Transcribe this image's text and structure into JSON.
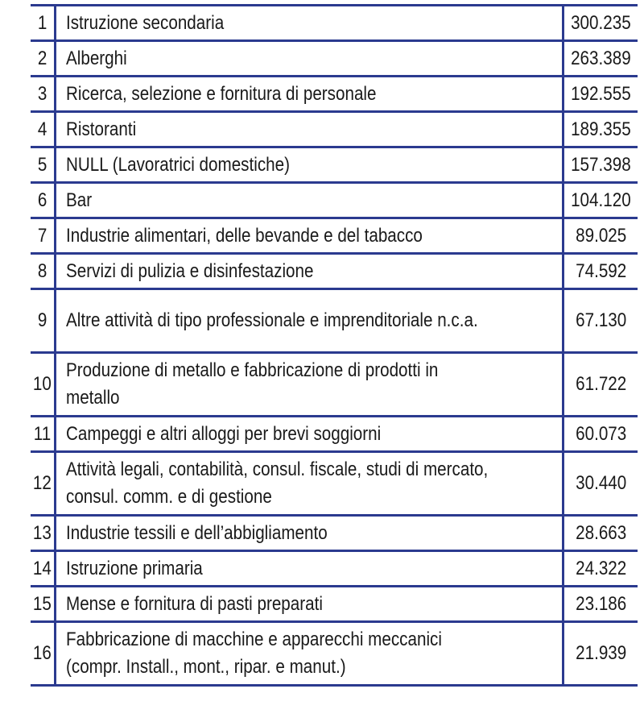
{
  "rows": [
    {
      "rank": "1",
      "sector": "Istruzione secondaria",
      "value": "300.235"
    },
    {
      "rank": "2",
      "sector": "Alberghi",
      "value": "263.389"
    },
    {
      "rank": "3",
      "sector": "Ricerca, selezione e fornitura di personale",
      "value": "192.555"
    },
    {
      "rank": "4",
      "sector": "Ristoranti",
      "value": "189.355"
    },
    {
      "rank": "5",
      "sector": "NULL (Lavoratrici domestiche)",
      "value": "157.398"
    },
    {
      "rank": "6",
      "sector": "Bar",
      "value": "104.120"
    },
    {
      "rank": "7",
      "sector": "Industrie alimentari, delle bevande e del tabacco",
      "value": "89.025"
    },
    {
      "rank": "8",
      "sector": "Servizi di pulizia e disinfestazione",
      "value": "74.592"
    },
    {
      "rank": "9",
      "sector": "Altre attività di tipo professionale e imprenditoriale n.c.a.",
      "value": "67.130"
    },
    {
      "rank": "10",
      "sector": "Produzione di metallo e fabbricazione di prodotti in metallo",
      "value": "61.722"
    },
    {
      "rank": "11",
      "sector": "Campeggi e altri alloggi per brevi soggiorni",
      "value": "60.073"
    },
    {
      "rank": "12",
      "sector": "Attività legali, contabilità, consul. fiscale, studi di mercato, consul. comm. e di gestione",
      "value": "30.440"
    },
    {
      "rank": "13",
      "sector": "Industrie tessili e dell’abbigliamento",
      "value": "28.663"
    },
    {
      "rank": "14",
      "sector": "Istruzione primaria",
      "value": "24.322"
    },
    {
      "rank": "15",
      "sector": "Mense e fornitura di pasti preparati",
      "value": "23.186"
    },
    {
      "rank": "16",
      "sector": "Fabbricazione di macchine e apparecchi meccanici (compr. Install., mont., ripar. e manut.)",
      "value": "21.939"
    }
  ],
  "colors": {
    "rule": "#2b3a8f",
    "text": "#1a1a1a"
  }
}
